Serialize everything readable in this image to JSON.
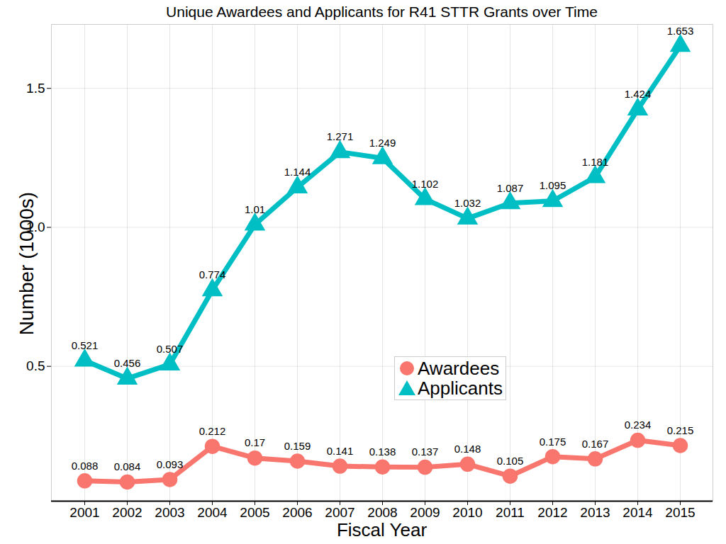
{
  "chart_data": {
    "type": "line",
    "title": "Unique Awardees and Applicants for R41 STTR Grants over Time",
    "x_label": "Fiscal Year",
    "y_label": "Number (1000s)",
    "categories": [
      "2001",
      "2002",
      "2003",
      "2004",
      "2005",
      "2006",
      "2007",
      "2008",
      "2009",
      "2010",
      "2011",
      "2012",
      "2013",
      "2014",
      "2015"
    ],
    "series": [
      {
        "name": "Awardees",
        "color": "#F8766D",
        "marker": "circle",
        "values": [
          0.088,
          0.084,
          0.093,
          0.212,
          0.17,
          0.159,
          0.141,
          0.138,
          0.137,
          0.148,
          0.105,
          0.175,
          0.167,
          0.234,
          0.215
        ]
      },
      {
        "name": "Applicants",
        "color": "#00BFC4",
        "marker": "triangle",
        "values": [
          0.521,
          0.456,
          0.507,
          0.774,
          1.01,
          1.144,
          1.271,
          1.249,
          1.102,
          1.032,
          1.087,
          1.095,
          1.181,
          1.424,
          1.653
        ]
      }
    ],
    "ylim": [
      0.015,
      1.73
    ],
    "yticks": [
      0.5,
      {
        "value": 1,
        "label": "1.0"
      },
      1.5
    ],
    "grid": true,
    "legend": "center",
    "data_labels": true
  }
}
